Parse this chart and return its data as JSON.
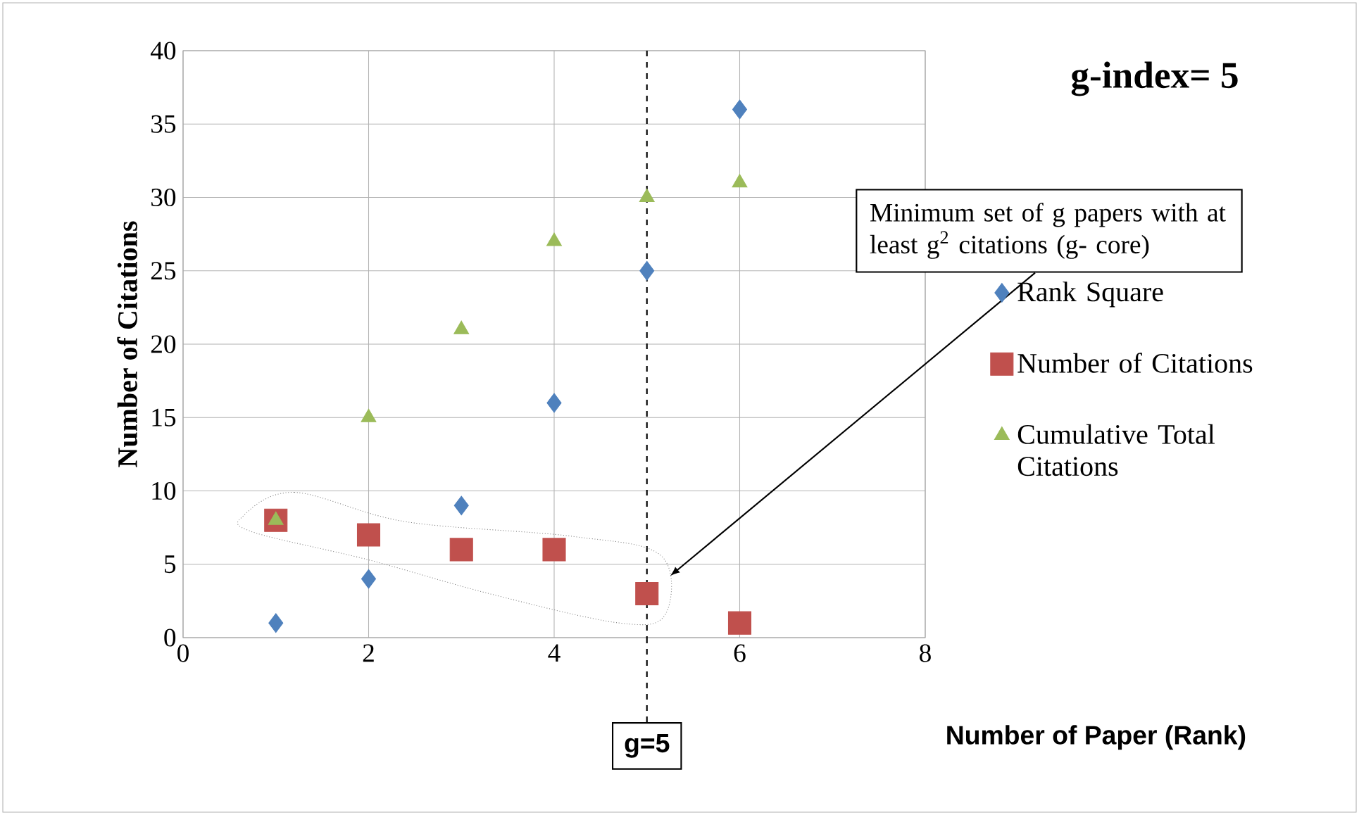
{
  "chart_data": {
    "type": "scatter",
    "xlabel": "Number of Paper (Rank)",
    "ylabel": "Number of Citations",
    "x": [
      1,
      2,
      3,
      4,
      5,
      6
    ],
    "series": [
      {
        "name": "Rank Square",
        "color": "#4f81bd",
        "marker": "diamond",
        "values": [
          1,
          4,
          9,
          16,
          25,
          36
        ]
      },
      {
        "name": "Number of Citations",
        "color": "#c0504d",
        "marker": "square",
        "values": [
          8,
          7,
          6,
          6,
          3,
          1
        ]
      },
      {
        "name": "Cumulative Total Citations",
        "color": "#9bbb59",
        "marker": "triangle",
        "values": [
          8,
          15,
          21,
          27,
          30,
          31
        ]
      }
    ],
    "xlim": [
      0,
      8
    ],
    "xticks": [
      0,
      2,
      4,
      6,
      8
    ],
    "ylim": [
      0,
      40
    ],
    "yticks": [
      0,
      5,
      10,
      15,
      20,
      25,
      30,
      35,
      40
    ],
    "grid": true,
    "legend": "right",
    "ref_lines": [
      {
        "axis": "x",
        "value": 5,
        "label": "g=5",
        "line_style": "dashed"
      }
    ],
    "annotations": [
      "g-index= 5",
      "Minimum set of g papers with at least g$^{2}$ citations (g- core)"
    ]
  }
}
